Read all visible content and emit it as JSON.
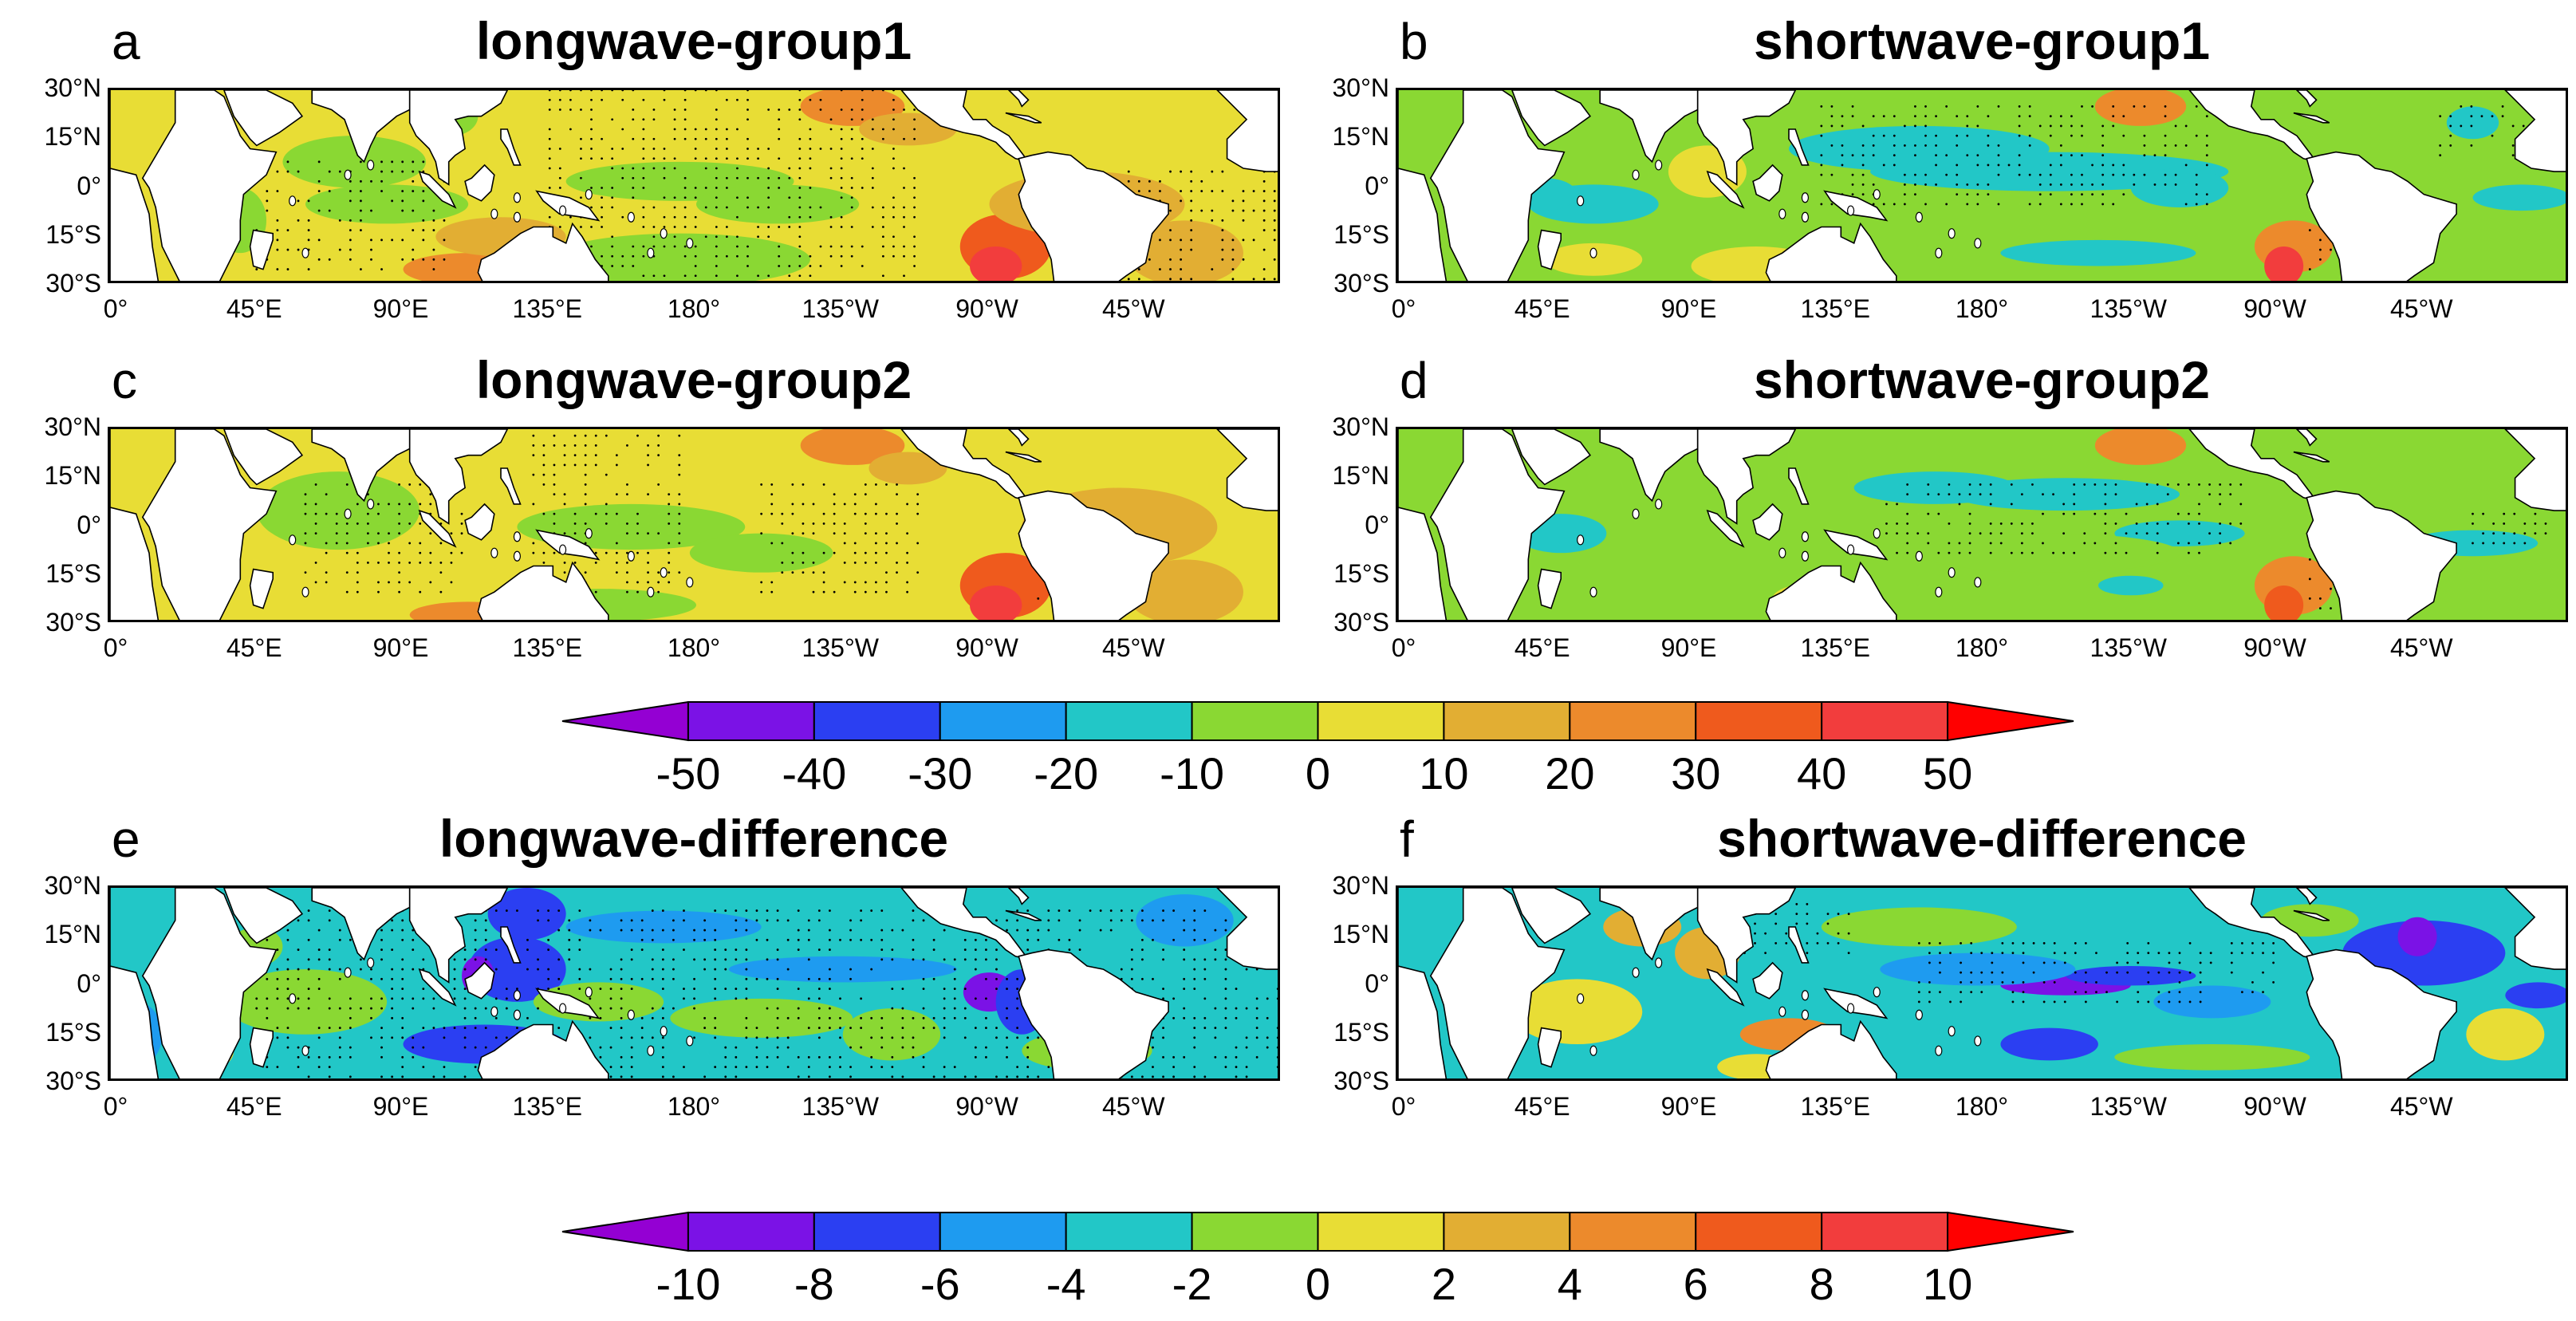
{
  "panels": [
    {
      "letter": "a",
      "title": "longwave-group1",
      "scheme": "lw1"
    },
    {
      "letter": "b",
      "title": "shortwave-group1",
      "scheme": "sw1"
    },
    {
      "letter": "c",
      "title": "longwave-group2",
      "scheme": "lw2"
    },
    {
      "letter": "d",
      "title": "shortwave-group2",
      "scheme": "sw2"
    },
    {
      "letter": "e",
      "title": "longwave-difference",
      "scheme": "lwd"
    },
    {
      "letter": "f",
      "title": "shortwave-difference",
      "scheme": "swd"
    }
  ],
  "lat_labels": [
    "30°N",
    "15°N",
    "0°",
    "15°S",
    "30°S"
  ],
  "lon_labels": [
    "0°",
    "45°E",
    "90°E",
    "135°E",
    "180°",
    "135°W",
    "90°W",
    "45°W"
  ],
  "colorbar_top": {
    "labels": [
      "-50",
      "-40",
      "-30",
      "-20",
      "-10",
      "0",
      "10",
      "20",
      "30",
      "40",
      "50"
    ]
  },
  "colorbar_bottom": {
    "labels": [
      "-10",
      "-8",
      "-6",
      "-4",
      "-2",
      "0",
      "2",
      "4",
      "6",
      "8",
      "10"
    ]
  },
  "colors": {
    "palette": [
      "#9400d3",
      "#7b12e6",
      "#2b3ff2",
      "#1e9bf0",
      "#22c7c7",
      "#8ad833",
      "#e8dd35",
      "#e2ae33",
      "#ec8a2c",
      "#ef5a1d",
      "#f23d3d",
      "#ff0000"
    ],
    "land": "#ffffff",
    "stipple": "#000000"
  }
}
